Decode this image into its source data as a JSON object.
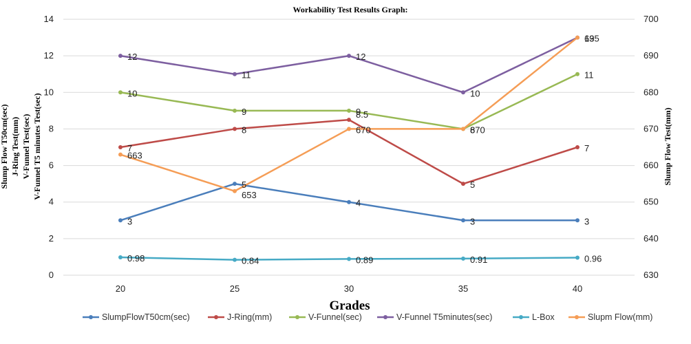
{
  "chart_data": {
    "type": "line",
    "title": "Workability Test Results Graph:",
    "xlabel": "Grades",
    "ylabel_left": [
      "Slump Flow T50cm(sec)",
      "J-Ring Test(mm)",
      "V-Funnel Test(sec)",
      "V-Funnel T5 minutes Test(sec)"
    ],
    "ylabel_right": "Slump Flow Test(mm)",
    "categories": [
      "20",
      "25",
      "30",
      "35",
      "40"
    ],
    "ylim_left": [
      0,
      14
    ],
    "ytick_step_left": 2,
    "ylim_right": [
      630,
      700
    ],
    "ytick_step_right": 10,
    "grid": true,
    "legend_position": "bottom",
    "series": [
      {
        "name": "SlumpFlowT50cm(sec)",
        "axis": "left",
        "color": "#4a7ebb",
        "values": [
          3,
          5,
          4,
          3,
          3
        ],
        "labels": [
          "3",
          "5",
          "4",
          "3",
          "3"
        ]
      },
      {
        "name": "J-Ring(mm)",
        "axis": "left",
        "color": "#be4b48",
        "values": [
          7,
          8,
          8.5,
          5,
          7
        ],
        "labels": [
          "7",
          "8",
          "8.5",
          "5",
          "7"
        ]
      },
      {
        "name": "V-Funnel(sec)",
        "axis": "left",
        "color": "#98b954",
        "values": [
          10,
          9,
          9,
          8,
          11
        ],
        "labels": [
          "10",
          "9",
          "9",
          "8",
          "11"
        ]
      },
      {
        "name": "V-Funnel T5minutes(sec)",
        "axis": "left",
        "color": "#7d5fa0",
        "values": [
          12,
          11,
          12,
          10,
          13
        ],
        "labels": [
          "12",
          "11",
          "12",
          "10",
          "13"
        ]
      },
      {
        "name": "L-Box",
        "axis": "left",
        "color": "#46aac5",
        "values": [
          0.98,
          0.84,
          0.89,
          0.91,
          0.96
        ],
        "labels": [
          "0.98",
          "0.84",
          "0.89",
          "0.91",
          "0.96"
        ]
      },
      {
        "name": "Slupm Flow(mm)",
        "axis": "right",
        "color": "#f59d56",
        "values": [
          663,
          653,
          670,
          670,
          695
        ],
        "labels": [
          "663",
          "653",
          "670",
          "670",
          "695"
        ]
      }
    ]
  }
}
